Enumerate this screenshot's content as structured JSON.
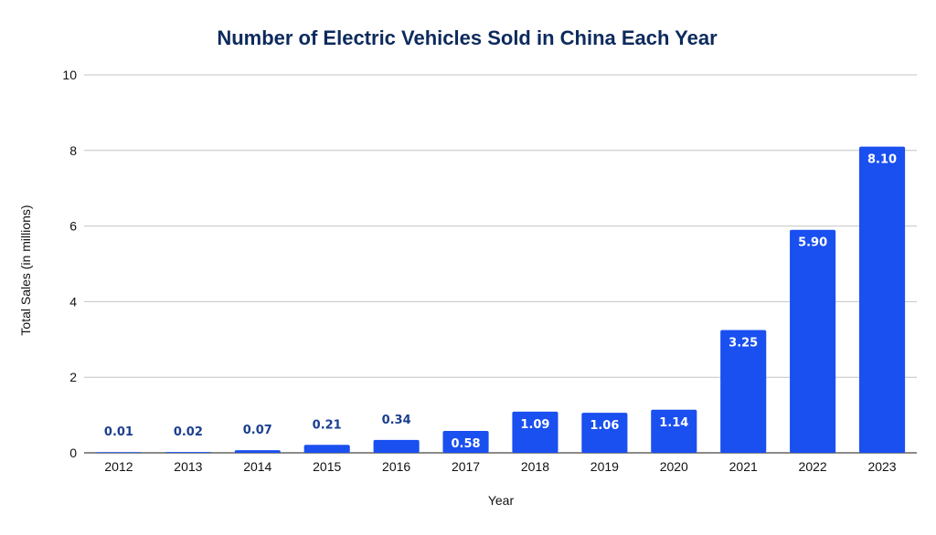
{
  "chart_data": {
    "type": "bar",
    "title": "Number of Electric Vehicles Sold in China Each Year",
    "xlabel": "Year",
    "ylabel": "Total Sales (in millions)",
    "categories": [
      "2012",
      "2013",
      "2014",
      "2015",
      "2016",
      "2017",
      "2018",
      "2019",
      "2020",
      "2021",
      "2022",
      "2023"
    ],
    "values": [
      0.01,
      0.02,
      0.07,
      0.21,
      0.34,
      0.58,
      1.09,
      1.06,
      1.14,
      3.25,
      5.9,
      8.1
    ],
    "value_labels": [
      "0.01",
      "0.02",
      "0.07",
      "0.21",
      "0.34",
      "0.58",
      "1.09",
      "1.06",
      "1.14",
      "3.25",
      "5.90",
      "8.10"
    ],
    "ylim": [
      0,
      10
    ],
    "yticks": [
      "0",
      "2",
      "4",
      "6",
      "8",
      "10"
    ],
    "grid": true,
    "legend": "none",
    "colors": {
      "bar": "#1a4ff0",
      "title": "#0d2a5c",
      "label_outside": "#1b3f8f",
      "label_inside": "#ffffff",
      "grid": "#c4c4c4"
    }
  }
}
